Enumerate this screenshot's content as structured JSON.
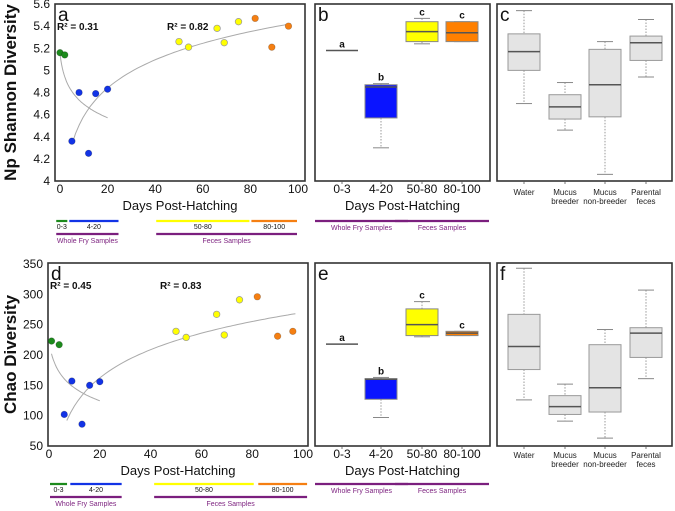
{
  "colors": {
    "g0_3": "#1c8a1c",
    "g4_20": "#1233e6",
    "g50_80": "#ffff00",
    "g80_100": "#f57f12",
    "samples": "#7b1f7e",
    "box_gray": "#e4e4e4"
  },
  "chart_data": [
    {
      "panel": "a",
      "type": "scatter",
      "ylabel": "Np Shannon Diversity",
      "xlabel": "Days Post-Hatching",
      "ylim": [
        4,
        5.6
      ],
      "xlim": [
        0,
        100
      ],
      "yticks": [
        {
          "v": 4,
          "t": "4"
        },
        {
          "v": 4.2,
          "t": "4.2"
        },
        {
          "v": 4.4,
          "t": "4.4"
        },
        {
          "v": 4.6,
          "t": "4.6"
        },
        {
          "v": 4.8,
          "t": "4.8"
        },
        {
          "v": 5,
          "t": "5"
        },
        {
          "v": 5.2,
          "t": "5.2"
        },
        {
          "v": 5.4,
          "t": "5.4"
        },
        {
          "v": 5.6,
          "t": "5.6"
        }
      ],
      "xticks": [
        {
          "v": 0,
          "t": "0"
        },
        {
          "v": 20,
          "t": "20"
        },
        {
          "v": 40,
          "t": "40"
        },
        {
          "v": 60,
          "t": "60"
        },
        {
          "v": 80,
          "t": "80"
        },
        {
          "v": 100,
          "t": "100"
        }
      ],
      "series": [
        {
          "name": "0-3",
          "color": "#1c8a1c",
          "points": [
            [
              0,
              5.16
            ],
            [
              2,
              5.14
            ]
          ]
        },
        {
          "name": "4-20",
          "color": "#1233e6",
          "points": [
            [
              5,
              4.36
            ],
            [
              8,
              4.8
            ],
            [
              12,
              4.25
            ],
            [
              15,
              4.79
            ],
            [
              20,
              4.83
            ]
          ]
        },
        {
          "name": "50-80",
          "color": "#ffff00",
          "points": [
            [
              50,
              5.26
            ],
            [
              54,
              5.21
            ],
            [
              66,
              5.38
            ],
            [
              69,
              5.25
            ],
            [
              75,
              5.44
            ]
          ]
        },
        {
          "name": "80-100",
          "color": "#f57f12",
          "points": [
            [
              82,
              5.47
            ],
            [
              89,
              5.21
            ],
            [
              96,
              5.4
            ]
          ]
        }
      ],
      "fits": [
        {
          "model": "log",
          "a": 5.15,
          "b": -0.19,
          "shift": 1,
          "from": 0,
          "to": 20
        },
        {
          "model": "log",
          "a": 3.738,
          "b": 0.368,
          "shift": 0,
          "from": 5,
          "to": 97
        }
      ],
      "r2_labels": [
        "R² = 0.31",
        "R² = 0.82"
      ],
      "range_bars": [
        {
          "label": "0-3",
          "color": "#1c8a1c",
          "from": -2,
          "to": 3.5
        },
        {
          "label": "4-20",
          "color": "#1233e6",
          "from": 3.5,
          "to": 25
        },
        {
          "label": "50-80",
          "color": "#ffff00",
          "from": 40,
          "to": 80
        },
        {
          "label": "80-100",
          "color": "#f57f12",
          "from": 80,
          "to": 100
        }
      ],
      "sample_bars": [
        {
          "label": "Whole Fry Samples",
          "from": -2,
          "to": 25
        },
        {
          "label": "Feces Samples",
          "from": 40,
          "to": 100
        }
      ]
    },
    {
      "panel": "b",
      "type": "box",
      "xlabel": "Days Post-Hatching",
      "ylim": [
        4,
        5.6
      ],
      "categories": [
        "0-3",
        "4-20",
        "50-80",
        "80-100"
      ],
      "boxes": [
        {
          "median": 5.18,
          "line_only": true,
          "color": "#555555",
          "sig": "a"
        },
        {
          "low": 4.3,
          "q1": 4.57,
          "median": 4.85,
          "q3": 4.87,
          "high": 4.88,
          "color": "#0a14ff",
          "sig": "b"
        },
        {
          "low": 5.24,
          "q1": 5.26,
          "median": 5.35,
          "q3": 5.44,
          "high": 5.47,
          "color": "#ffff00",
          "sig": "c"
        },
        {
          "low": 5.26,
          "q1": 5.26,
          "median": 5.34,
          "q3": 5.44,
          "high": 5.44,
          "color": "#ff8000",
          "sig": "c"
        }
      ],
      "sample_bars": [
        {
          "label": "Whole Fry Samples",
          "cats": [
            0,
            1
          ]
        },
        {
          "label": "Feces Samples",
          "cats": [
            2,
            3
          ]
        }
      ]
    },
    {
      "panel": "c",
      "type": "box",
      "ylim": [
        4,
        5.6
      ],
      "categories": [
        [
          "Water",
          ""
        ],
        [
          "Mucus",
          "breeder"
        ],
        [
          "Mucus",
          "non-breeder"
        ],
        [
          "Parental",
          "feces"
        ]
      ],
      "boxes": [
        {
          "low": 4.7,
          "q1": 5.0,
          "median": 5.17,
          "q3": 5.33,
          "high": 5.54,
          "color": "#e4e4e4"
        },
        {
          "low": 4.46,
          "q1": 4.56,
          "median": 4.67,
          "q3": 4.78,
          "high": 4.89,
          "color": "#e4e4e4"
        },
        {
          "low": 4.06,
          "q1": 4.58,
          "median": 4.87,
          "q3": 5.19,
          "high": 5.26,
          "color": "#e4e4e4"
        },
        {
          "low": 4.94,
          "q1": 5.09,
          "median": 5.25,
          "q3": 5.31,
          "high": 5.46,
          "color": "#e4e4e4"
        }
      ]
    },
    {
      "panel": "d",
      "type": "scatter",
      "ylabel": "Chao Diversity",
      "xlabel": "Days Post-Hatching",
      "ylim": [
        50,
        350
      ],
      "xlim": [
        0,
        100
      ],
      "yticks": [
        {
          "v": 50,
          "t": "50"
        },
        {
          "v": 100,
          "t": "100"
        },
        {
          "v": 150,
          "t": "150"
        },
        {
          "v": 200,
          "t": "200"
        },
        {
          "v": 250,
          "t": "250"
        },
        {
          "v": 300,
          "t": "300"
        },
        {
          "v": 350,
          "t": "350"
        }
      ],
      "xticks": [
        {
          "v": 0,
          "t": "0"
        },
        {
          "v": 20,
          "t": "20"
        },
        {
          "v": 40,
          "t": "40"
        },
        {
          "v": 60,
          "t": "60"
        },
        {
          "v": 80,
          "t": "80"
        },
        {
          "v": 100,
          "t": "100"
        }
      ],
      "series": [
        {
          "name": "0-3",
          "color": "#1c8a1c",
          "points": [
            [
              1,
              223
            ],
            [
              4,
              217
            ]
          ]
        },
        {
          "name": "4-20",
          "color": "#1233e6",
          "points": [
            [
              6,
              102
            ],
            [
              9,
              157
            ],
            [
              13,
              86
            ],
            [
              16,
              150
            ],
            [
              20,
              156
            ]
          ]
        },
        {
          "name": "50-80",
          "color": "#ffff00",
          "points": [
            [
              50,
              239
            ],
            [
              54,
              229
            ],
            [
              66,
              267
            ],
            [
              69,
              233
            ],
            [
              75,
              291
            ]
          ]
        },
        {
          "name": "80-100",
          "color": "#f57f12",
          "points": [
            [
              82,
              296
            ],
            [
              90,
              231
            ],
            [
              96,
              239
            ]
          ]
        }
      ],
      "fits": [
        {
          "model": "log",
          "a": 225,
          "b": -33,
          "shift": 1,
          "from": 1,
          "to": 20
        },
        {
          "model": "log",
          "a": -38.4,
          "b": 67,
          "shift": 0,
          "from": 7,
          "to": 97
        }
      ],
      "r2_labels": [
        "R² = 0.45",
        "R² = 0.83"
      ],
      "range_bars": [
        {
          "label": "0-3",
          "color": "#1c8a1c",
          "from": 0,
          "to": 7.5
        },
        {
          "label": "4-20",
          "color": "#1233e6",
          "from": 8,
          "to": 29
        },
        {
          "label": "50-80",
          "color": "#ffff00",
          "from": 41,
          "to": 81
        },
        {
          "label": "80-100",
          "color": "#f57f12",
          "from": 82,
          "to": 102
        }
      ],
      "sample_bars": [
        {
          "label": "Whole Fry Samples",
          "from": 0,
          "to": 29
        },
        {
          "label": "Feces Samples",
          "from": 41,
          "to": 102
        }
      ]
    },
    {
      "panel": "e",
      "type": "box",
      "xlabel": "Days Post-Hatching",
      "ylim": [
        50,
        350
      ],
      "categories": [
        "0-3",
        "4-20",
        "50-80",
        "80-100"
      ],
      "boxes": [
        {
          "median": 218,
          "line_only": true,
          "color": "#555555",
          "sig": "a"
        },
        {
          "low": 97,
          "q1": 127,
          "median": 160,
          "q3": 161,
          "high": 163,
          "color": "#0a14ff",
          "sig": "b"
        },
        {
          "low": 230,
          "q1": 232,
          "median": 250,
          "q3": 276,
          "high": 288,
          "color": "#ffff00",
          "sig": "c"
        },
        {
          "low": 232,
          "q1": 232,
          "median": 236,
          "q3": 239,
          "high": 239,
          "color": "#ff8000",
          "sig": "c"
        }
      ],
      "sample_bars": [
        {
          "label": "Whole Fry Samples",
          "cats": [
            0,
            1
          ]
        },
        {
          "label": "Feces Samples",
          "cats": [
            2,
            3
          ]
        }
      ]
    },
    {
      "panel": "f",
      "type": "box",
      "ylim": [
        50,
        350
      ],
      "categories": [
        [
          "Water",
          ""
        ],
        [
          "Mucus",
          "breeder"
        ],
        [
          "Mucus",
          "non-breeder"
        ],
        [
          "Parental",
          "feces"
        ]
      ],
      "boxes": [
        {
          "low": 126,
          "q1": 176,
          "median": 214,
          "q3": 267,
          "high": 343,
          "color": "#e4e4e4"
        },
        {
          "low": 91,
          "q1": 102,
          "median": 115,
          "q3": 133,
          "high": 152,
          "color": "#e4e4e4"
        },
        {
          "low": 63,
          "q1": 106,
          "median": 146,
          "q3": 217,
          "high": 242,
          "color": "#e4e4e4"
        },
        {
          "low": 161,
          "q1": 196,
          "median": 236,
          "q3": 245,
          "high": 307,
          "color": "#e4e4e4"
        }
      ]
    }
  ]
}
